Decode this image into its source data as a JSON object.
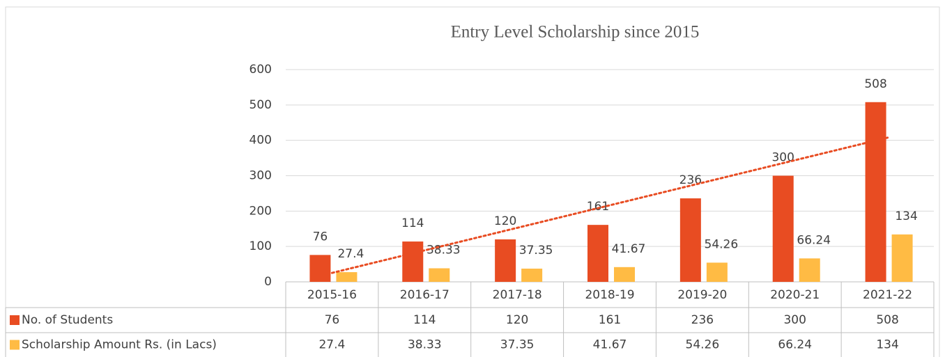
{
  "chart_data": {
    "type": "bar",
    "title": "Entry Level Scholarship since 2015",
    "categories": [
      "2015-16",
      "2016-17",
      "2017-18",
      "2018-19",
      "2019-20",
      "2020-21",
      "2021-22"
    ],
    "series": [
      {
        "name": "No. of Students",
        "color": "#e84c22",
        "values": [
          76,
          114,
          120,
          161,
          236,
          300,
          508
        ]
      },
      {
        "name": "Scholarship Amount Rs. (in Lacs)",
        "color": "#ffbb44",
        "values": [
          27.4,
          38.33,
          37.35,
          41.67,
          54.26,
          66.24,
          134
        ]
      }
    ],
    "ylim": [
      0,
      600
    ],
    "yticks": [
      0,
      100,
      200,
      300,
      400,
      500,
      600
    ],
    "grid": true,
    "trendline": true,
    "data_table": true
  }
}
